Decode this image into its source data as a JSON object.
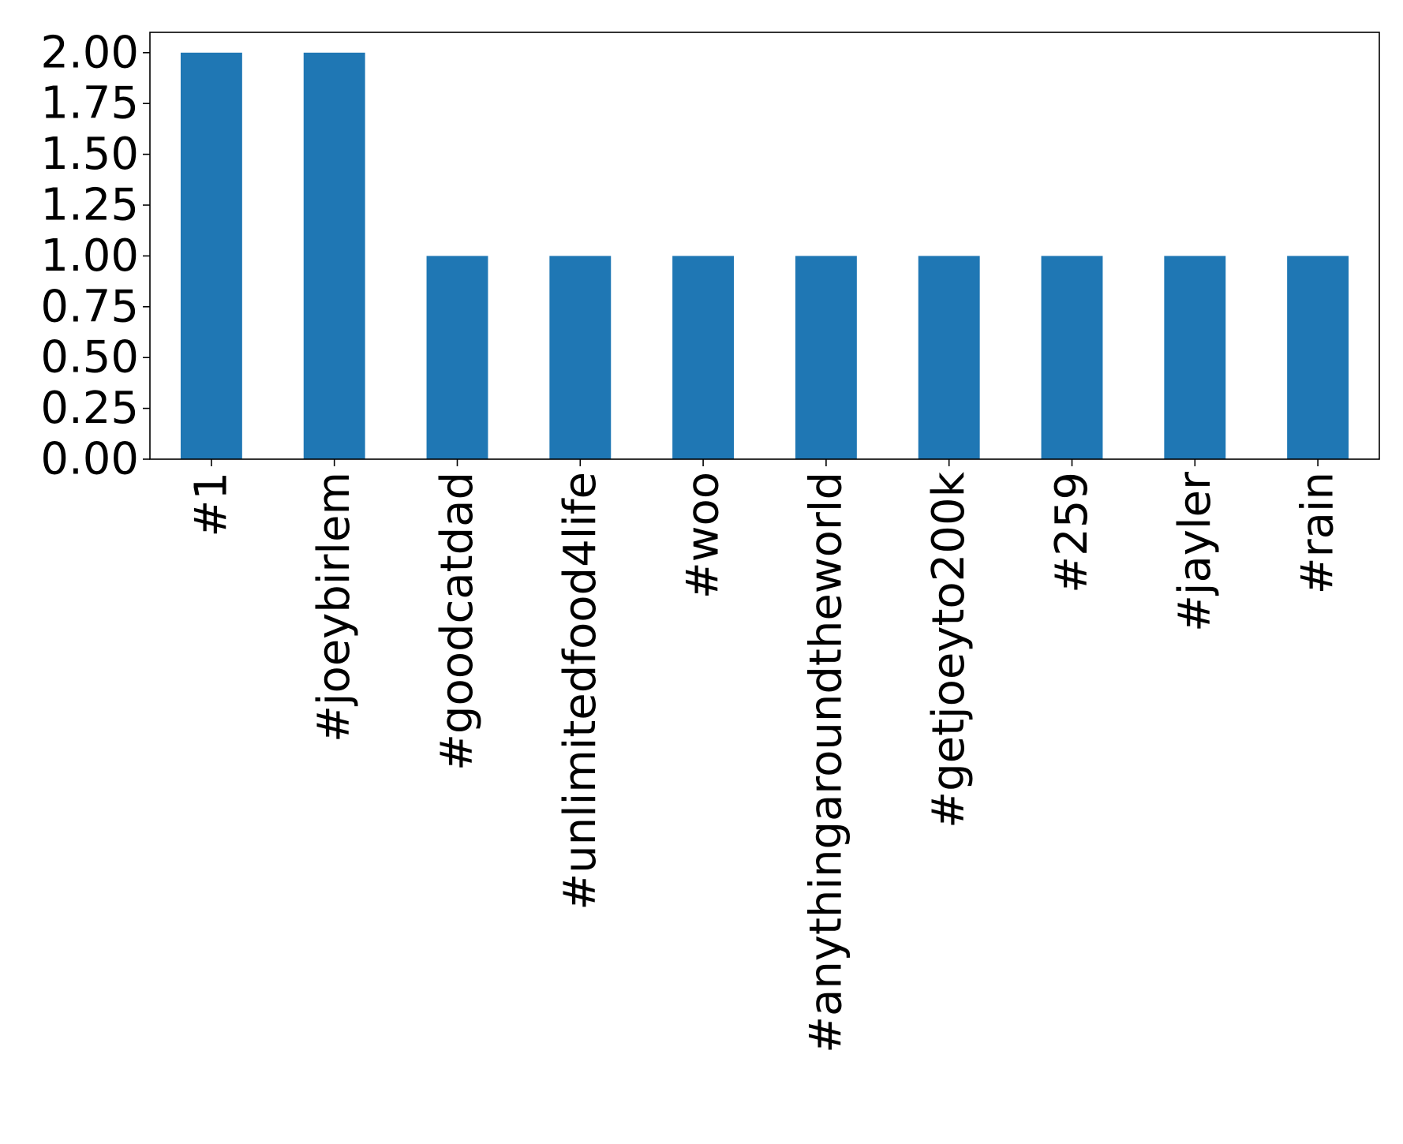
{
  "chart_data": {
    "type": "bar",
    "title": "",
    "xlabel": "",
    "ylabel": "",
    "categories": [
      "#1",
      "#joeybirlem",
      "#goodcatdad",
      "#unlimitedfood4life",
      "#woo",
      "#anythingaroundtheworld",
      "#getjoeyto200k",
      "#259",
      "#jayler",
      "#rain"
    ],
    "values": [
      2,
      2,
      1,
      1,
      1,
      1,
      1,
      1,
      1,
      1
    ],
    "ylim": [
      0,
      2.1
    ],
    "yticks": [
      "0.00",
      "0.25",
      "0.50",
      "0.75",
      "1.00",
      "1.25",
      "1.50",
      "1.75",
      "2.00"
    ],
    "bar_color": "#1f77b4",
    "grid": false,
    "legend": "none"
  }
}
